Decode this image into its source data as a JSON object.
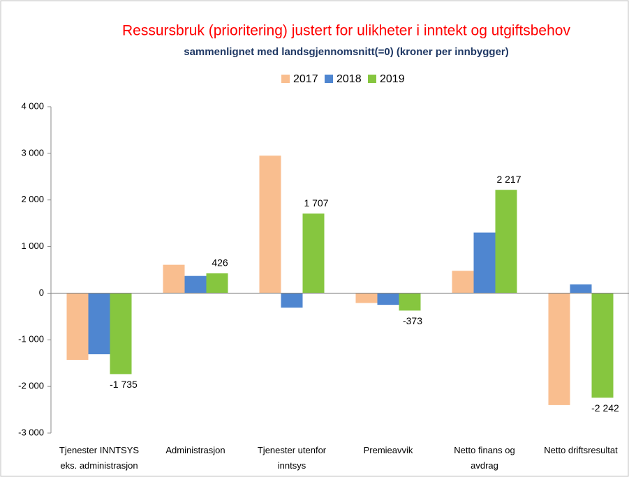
{
  "chart_data": {
    "type": "bar",
    "title": "Ressursbruk (prioritering) justert for  ulikheter i inntekt og utgiftsbehov",
    "subtitle": "sammenlignet med landsgjennomsnitt(=0) (kroner per innbygger)",
    "categories": [
      "Tjenester INNTSYS\neks. administrasjon",
      "Administrasjon",
      "Tjenester utenfor\ninntsys",
      "Premieavvik",
      "Netto finans og\navdrag",
      "Netto driftsresultat"
    ],
    "series": [
      {
        "name": "2017",
        "color": "#f9be8f",
        "values": [
          -1430,
          610,
          2950,
          -210,
          480,
          -2400
        ]
      },
      {
        "name": "2018",
        "color": "#4f86d0",
        "values": [
          -1310,
          370,
          -310,
          -250,
          1300,
          190
        ]
      },
      {
        "name": "2019",
        "color": "#86c63f",
        "values": [
          -1735,
          426,
          1707,
          -373,
          2217,
          -2242
        ],
        "value_labels": [
          "-1 735",
          "426",
          "1 707",
          "-373",
          "2 217",
          "-2 242"
        ]
      }
    ],
    "ylim": [
      -3000,
      4000
    ],
    "yticks": [
      {
        "value": -3000,
        "label": "-3 000"
      },
      {
        "value": -2000,
        "label": "-2 000"
      },
      {
        "value": -1000,
        "label": "-1 000"
      },
      0,
      {
        "value": 1000,
        "label": "1 000"
      },
      {
        "value": 2000,
        "label": "2 000"
      },
      {
        "value": 3000,
        "label": "3 000"
      },
      {
        "value": 4000,
        "label": "4 000"
      }
    ],
    "legend": "top"
  }
}
